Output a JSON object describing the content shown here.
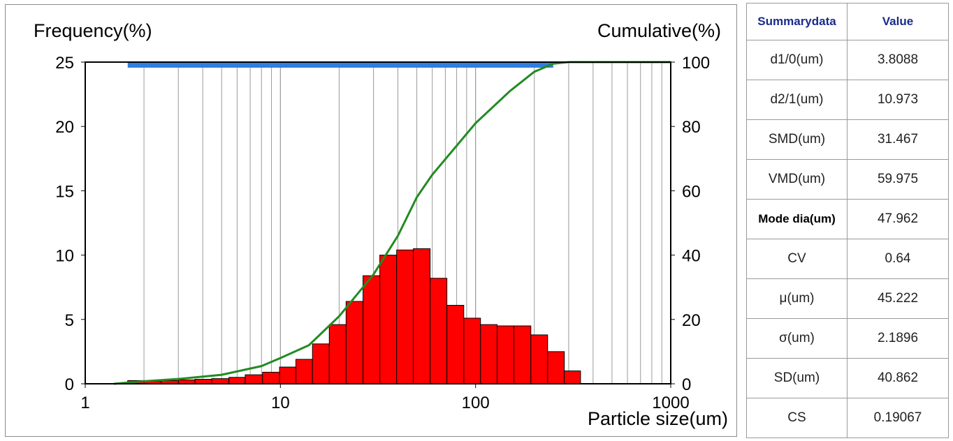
{
  "chart_data": {
    "type": "bar",
    "ylabel_left": "Frequency(%)",
    "ylabel_right": "Cumulative(%)",
    "xlabel": "Particle size(um)",
    "x_scale": "log",
    "xlim": [
      1,
      1000
    ],
    "ylim_left": [
      0,
      25
    ],
    "ylim_right": [
      0,
      100
    ],
    "grid": true,
    "x_ticks": [
      "1",
      "10",
      "100",
      "1000"
    ],
    "y_ticks_left": [
      "0",
      "5",
      "10",
      "15",
      "20",
      "25"
    ],
    "y_ticks_right": [
      "0",
      "20",
      "40",
      "60",
      "80",
      "100"
    ],
    "range_bar": {
      "from": 1.65,
      "to": 250,
      "color": "#2f7fe0"
    },
    "histogram": {
      "color": "#ff0000",
      "bins": [
        {
          "x0": 1.65,
          "x1": 2.0,
          "value": 0.25
        },
        {
          "x0": 2.0,
          "x1": 2.45,
          "value": 0.2
        },
        {
          "x0": 2.45,
          "x1": 3.0,
          "value": 0.25
        },
        {
          "x0": 3.0,
          "x1": 3.65,
          "value": 0.3
        },
        {
          "x0": 3.65,
          "x1": 4.45,
          "value": 0.35
        },
        {
          "x0": 4.45,
          "x1": 5.45,
          "value": 0.4
        },
        {
          "x0": 5.45,
          "x1": 6.6,
          "value": 0.5
        },
        {
          "x0": 6.6,
          "x1": 8.1,
          "value": 0.7
        },
        {
          "x0": 8.1,
          "x1": 9.9,
          "value": 0.9
        },
        {
          "x0": 9.9,
          "x1": 12.0,
          "value": 1.3
        },
        {
          "x0": 12.0,
          "x1": 14.6,
          "value": 1.9
        },
        {
          "x0": 14.6,
          "x1": 17.8,
          "value": 3.1
        },
        {
          "x0": 17.8,
          "x1": 21.7,
          "value": 4.6
        },
        {
          "x0": 21.7,
          "x1": 26.5,
          "value": 6.4
        },
        {
          "x0": 26.5,
          "x1": 32.3,
          "value": 8.4
        },
        {
          "x0": 32.3,
          "x1": 39.4,
          "value": 10.0
        },
        {
          "x0": 39.4,
          "x1": 48.0,
          "value": 10.4
        },
        {
          "x0": 48.0,
          "x1": 58.5,
          "value": 10.5
        },
        {
          "x0": 58.5,
          "x1": 71.3,
          "value": 8.2
        },
        {
          "x0": 71.3,
          "x1": 87.0,
          "value": 6.1
        },
        {
          "x0": 87.0,
          "x1": 106.0,
          "value": 5.1
        },
        {
          "x0": 106.0,
          "x1": 129.0,
          "value": 4.6
        },
        {
          "x0": 129.0,
          "x1": 157.0,
          "value": 4.5
        },
        {
          "x0": 157.0,
          "x1": 192.0,
          "value": 4.5
        },
        {
          "x0": 192.0,
          "x1": 234.0,
          "value": 3.8
        },
        {
          "x0": 234.0,
          "x1": 285.0,
          "value": 2.5
        },
        {
          "x0": 285.0,
          "x1": 345.0,
          "value": 1.0
        }
      ]
    },
    "cumulative": {
      "color": "#228b22",
      "points": [
        [
          1.4,
          0.0
        ],
        [
          2,
          0.8
        ],
        [
          3,
          1.5
        ],
        [
          5,
          2.8
        ],
        [
          8,
          5.5
        ],
        [
          10,
          8.0
        ],
        [
          14,
          12.0
        ],
        [
          20,
          21.0
        ],
        [
          30,
          34.0
        ],
        [
          40,
          46.0
        ],
        [
          50,
          58.0
        ],
        [
          60,
          65.0
        ],
        [
          80,
          74.0
        ],
        [
          100,
          81.0
        ],
        [
          150,
          91.0
        ],
        [
          200,
          97.0
        ],
        [
          250,
          99.5
        ],
        [
          300,
          100.0
        ],
        [
          1000,
          100.0
        ]
      ]
    }
  },
  "summary": {
    "header": {
      "name": "Summarydata",
      "value": "Value"
    },
    "rows": [
      {
        "name": "d1/0(um)",
        "value": "3.8088"
      },
      {
        "name": "d2/1(um)",
        "value": "10.973"
      },
      {
        "name": "SMD(um)",
        "value": "31.467"
      },
      {
        "name": "VMD(um)",
        "value": "59.975"
      },
      {
        "name": "Mode dia(um)",
        "value": "47.962"
      },
      {
        "name": "CV",
        "value": "0.64"
      },
      {
        "name": "μ(um)",
        "value": "45.222"
      },
      {
        "name": "σ(um)",
        "value": "2.1896"
      },
      {
        "name": "SD(um)",
        "value": "40.862"
      },
      {
        "name": "CS",
        "value": "0.19067"
      }
    ]
  }
}
